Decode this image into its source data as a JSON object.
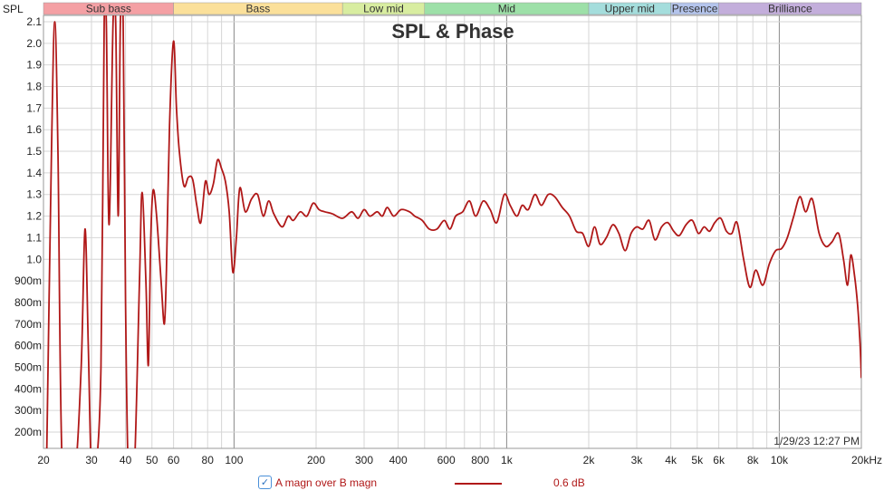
{
  "chart_data": {
    "type": "line",
    "title": "SPL & Phase",
    "ylabel": "SPL",
    "x_scale": "log",
    "xlim": [
      20,
      20000
    ],
    "ylim": [
      0.2,
      2.1
    ],
    "x_tick_labels": [
      {
        "v": 20,
        "t": "20"
      },
      {
        "v": 30,
        "t": "30"
      },
      {
        "v": 40,
        "t": "40"
      },
      {
        "v": 50,
        "t": "50"
      },
      {
        "v": 60,
        "t": "60"
      },
      {
        "v": 80,
        "t": "80"
      },
      {
        "v": 100,
        "t": "100"
      },
      {
        "v": 200,
        "t": "200"
      },
      {
        "v": 300,
        "t": "300"
      },
      {
        "v": 400,
        "t": "400"
      },
      {
        "v": 600,
        "t": "600"
      },
      {
        "v": 800,
        "t": "800"
      },
      {
        "v": 1000,
        "t": "1k"
      },
      {
        "v": 2000,
        "t": "2k"
      },
      {
        "v": 3000,
        "t": "3k"
      },
      {
        "v": 4000,
        "t": "4k"
      },
      {
        "v": 5000,
        "t": "5k"
      },
      {
        "v": 6000,
        "t": "6k"
      },
      {
        "v": 8000,
        "t": "8k"
      },
      {
        "v": 10000,
        "t": "10k"
      },
      {
        "v": 20000,
        "t": "20kHz"
      }
    ],
    "y_tick_labels": [
      {
        "v": 2.1,
        "t": "2.1"
      },
      {
        "v": 2.0,
        "t": "2.0"
      },
      {
        "v": 1.9,
        "t": "1.9"
      },
      {
        "v": 1.8,
        "t": "1.8"
      },
      {
        "v": 1.7,
        "t": "1.7"
      },
      {
        "v": 1.6,
        "t": "1.6"
      },
      {
        "v": 1.5,
        "t": "1.5"
      },
      {
        "v": 1.4,
        "t": "1.4"
      },
      {
        "v": 1.3,
        "t": "1.3"
      },
      {
        "v": 1.2,
        "t": "1.2"
      },
      {
        "v": 1.1,
        "t": "1.1"
      },
      {
        "v": 1.0,
        "t": "1.0"
      },
      {
        "v": 0.9,
        "t": "900m"
      },
      {
        "v": 0.8,
        "t": "800m"
      },
      {
        "v": 0.7,
        "t": "700m"
      },
      {
        "v": 0.6,
        "t": "600m"
      },
      {
        "v": 0.5,
        "t": "500m"
      },
      {
        "v": 0.4,
        "t": "400m"
      },
      {
        "v": 0.3,
        "t": "300m"
      },
      {
        "v": 0.2,
        "t": "200m"
      }
    ],
    "bands": [
      {
        "name": "Sub bass",
        "from": 20,
        "to": 60,
        "color": "#f4a0a4"
      },
      {
        "name": "Bass",
        "from": 60,
        "to": 250,
        "color": "#fbe09a"
      },
      {
        "name": "Low mid",
        "from": 250,
        "to": 500,
        "color": "#d8eda0"
      },
      {
        "name": "Mid",
        "from": 500,
        "to": 2000,
        "color": "#9de0a8"
      },
      {
        "name": "Upper mid",
        "from": 2000,
        "to": 4000,
        "color": "#a4dddc"
      },
      {
        "name": "Presence",
        "from": 4000,
        "to": 6000,
        "color": "#b4c4ec"
      },
      {
        "name": "Brilliance",
        "from": 6000,
        "to": 20000,
        "color": "#c3aedb"
      }
    ],
    "timestamp": "1/29/23 12:27 PM",
    "series": [
      {
        "name": "A magn over B magn",
        "color": "#b01818",
        "points": [
          [
            20.5,
            0.0
          ],
          [
            21.4,
            1.5
          ],
          [
            22.0,
            2.1
          ],
          [
            22.6,
            1.5
          ],
          [
            23.5,
            0.0
          ],
          [
            26.0,
            0.0
          ],
          [
            27.5,
            0.5
          ],
          [
            28.4,
            1.14
          ],
          [
            29.2,
            0.6
          ],
          [
            30.0,
            0.0
          ],
          [
            31.0,
            0.0
          ],
          [
            32.5,
            0.5
          ],
          [
            33.4,
            2.1
          ],
          [
            34.0,
            2.1
          ],
          [
            34.8,
            1.16
          ],
          [
            36.0,
            2.1
          ],
          [
            36.8,
            2.1
          ],
          [
            37.6,
            1.2
          ],
          [
            38.3,
            2.1
          ],
          [
            39.2,
            2.1
          ],
          [
            40.0,
            0.8
          ],
          [
            41.0,
            0.0
          ],
          [
            43.0,
            0.0
          ],
          [
            45.0,
            0.9
          ],
          [
            46.0,
            1.31
          ],
          [
            47.5,
            0.9
          ],
          [
            48.5,
            0.51
          ],
          [
            49.5,
            1.1
          ],
          [
            50.5,
            1.32
          ],
          [
            52.0,
            1.2
          ],
          [
            54.0,
            0.9
          ],
          [
            55.5,
            0.7
          ],
          [
            56.5,
            0.95
          ],
          [
            58.0,
            1.62
          ],
          [
            60.0,
            2.01
          ],
          [
            61.5,
            1.7
          ],
          [
            63.0,
            1.5
          ],
          [
            65.5,
            1.34
          ],
          [
            68.0,
            1.38
          ],
          [
            70.5,
            1.37
          ],
          [
            73.0,
            1.25
          ],
          [
            75.5,
            1.17
          ],
          [
            78.5,
            1.36
          ],
          [
            81.0,
            1.3
          ],
          [
            84.0,
            1.35
          ],
          [
            87.0,
            1.46
          ],
          [
            90.0,
            1.42
          ],
          [
            93.0,
            1.36
          ],
          [
            96.0,
            1.22
          ],
          [
            99.0,
            0.94
          ],
          [
            102.0,
            1.1
          ],
          [
            105.0,
            1.33
          ],
          [
            110.0,
            1.22
          ],
          [
            116.0,
            1.28
          ],
          [
            122.0,
            1.3
          ],
          [
            128.0,
            1.2
          ],
          [
            134.0,
            1.27
          ],
          [
            140.0,
            1.21
          ],
          [
            150.0,
            1.15
          ],
          [
            158.0,
            1.2
          ],
          [
            165.0,
            1.18
          ],
          [
            175.0,
            1.22
          ],
          [
            185.0,
            1.2
          ],
          [
            195.0,
            1.26
          ],
          [
            205.0,
            1.23
          ],
          [
            215.0,
            1.22
          ],
          [
            230.0,
            1.21
          ],
          [
            250.0,
            1.19
          ],
          [
            270.0,
            1.22
          ],
          [
            285.0,
            1.19
          ],
          [
            300.0,
            1.23
          ],
          [
            315.0,
            1.2
          ],
          [
            335.0,
            1.22
          ],
          [
            350.0,
            1.2
          ],
          [
            365.0,
            1.24
          ],
          [
            385.0,
            1.2
          ],
          [
            410.0,
            1.23
          ],
          [
            440.0,
            1.22
          ],
          [
            460.0,
            1.2
          ],
          [
            490.0,
            1.18
          ],
          [
            520.0,
            1.14
          ],
          [
            555.0,
            1.14
          ],
          [
            590.0,
            1.18
          ],
          [
            620.0,
            1.14
          ],
          [
            650.0,
            1.2
          ],
          [
            690.0,
            1.22
          ],
          [
            730.0,
            1.27
          ],
          [
            770.0,
            1.2
          ],
          [
            820.0,
            1.27
          ],
          [
            870.0,
            1.23
          ],
          [
            920.0,
            1.17
          ],
          [
            980.0,
            1.3
          ],
          [
            1030.0,
            1.25
          ],
          [
            1090.0,
            1.2
          ],
          [
            1140.0,
            1.25
          ],
          [
            1200.0,
            1.23
          ],
          [
            1270.0,
            1.3
          ],
          [
            1340.0,
            1.25
          ],
          [
            1420.0,
            1.3
          ],
          [
            1500.0,
            1.29
          ],
          [
            1600.0,
            1.24
          ],
          [
            1700.0,
            1.2
          ],
          [
            1800.0,
            1.13
          ],
          [
            1900.0,
            1.12
          ],
          [
            2000.0,
            1.06
          ],
          [
            2100.0,
            1.15
          ],
          [
            2200.0,
            1.07
          ],
          [
            2320.0,
            1.1
          ],
          [
            2450.0,
            1.16
          ],
          [
            2580.0,
            1.12
          ],
          [
            2720.0,
            1.04
          ],
          [
            2860.0,
            1.12
          ],
          [
            3000.0,
            1.15
          ],
          [
            3160.0,
            1.14
          ],
          [
            3330.0,
            1.18
          ],
          [
            3500.0,
            1.09
          ],
          [
            3700.0,
            1.15
          ],
          [
            3900.0,
            1.17
          ],
          [
            4100.0,
            1.13
          ],
          [
            4300.0,
            1.11
          ],
          [
            4550.0,
            1.16
          ],
          [
            4800.0,
            1.18
          ],
          [
            5050.0,
            1.12
          ],
          [
            5300.0,
            1.15
          ],
          [
            5550.0,
            1.13
          ],
          [
            5800.0,
            1.17
          ],
          [
            6100.0,
            1.19
          ],
          [
            6400.0,
            1.13
          ],
          [
            6700.0,
            1.12
          ],
          [
            7000.0,
            1.17
          ],
          [
            7400.0,
            1.0
          ],
          [
            7800.0,
            0.87
          ],
          [
            8200.0,
            0.95
          ],
          [
            8700.0,
            0.88
          ],
          [
            9200.0,
            0.98
          ],
          [
            9700.0,
            1.04
          ],
          [
            10200.0,
            1.05
          ],
          [
            10700.0,
            1.1
          ],
          [
            11300.0,
            1.2
          ],
          [
            11900.0,
            1.29
          ],
          [
            12500.0,
            1.22
          ],
          [
            13200.0,
            1.28
          ],
          [
            14000.0,
            1.12
          ],
          [
            14800.0,
            1.06
          ],
          [
            15600.0,
            1.08
          ],
          [
            16500.0,
            1.12
          ],
          [
            17200.0,
            1.0
          ],
          [
            17800.0,
            0.88
          ],
          [
            18300.0,
            1.02
          ],
          [
            18900.0,
            0.92
          ],
          [
            19400.0,
            0.78
          ],
          [
            19800.0,
            0.6
          ],
          [
            20000.0,
            0.45
          ]
        ]
      }
    ]
  },
  "legend": {
    "checked_mark": "✓",
    "series_label": "A magn over B magn",
    "smoothing_value": "0.6 dB"
  }
}
